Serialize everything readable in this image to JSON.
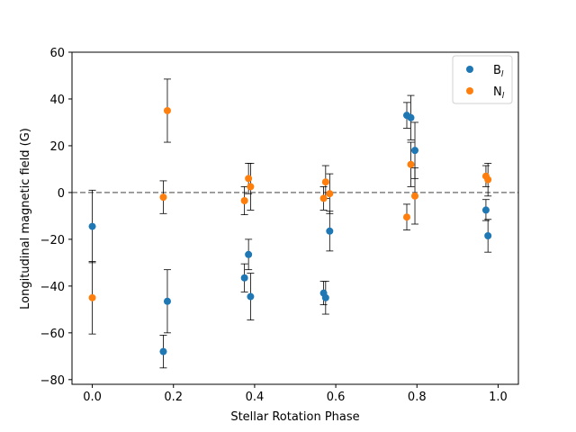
{
  "chart_data": {
    "type": "scatter",
    "title": "",
    "xlabel": "Stellar Rotation Phase",
    "ylabel": "Longitudinal magnetic field (G)",
    "xlim": [
      -0.05,
      1.05
    ],
    "ylim": [
      -82,
      60
    ],
    "xticks": [
      0.0,
      0.2,
      0.4,
      0.6,
      0.8,
      1.0
    ],
    "xtick_labels": [
      "0.0",
      "0.2",
      "0.4",
      "0.6",
      "0.8",
      "1.0"
    ],
    "yticks": [
      -80,
      -60,
      -40,
      -20,
      0,
      20,
      40,
      60
    ],
    "ytick_labels": [
      "−80",
      "−60",
      "−40",
      "−20",
      "0",
      "20",
      "40",
      "60"
    ],
    "reference_line": {
      "y": 0,
      "style": "dashed",
      "color": "#808080"
    },
    "legend": {
      "position": "top-right"
    },
    "series": [
      {
        "name": "B",
        "subscript": "l",
        "color": "#1f77b4",
        "points": [
          {
            "x": 0.0,
            "y": -14.5,
            "err": 15.5
          },
          {
            "x": 0.175,
            "y": -68.0,
            "err": 7.0
          },
          {
            "x": 0.185,
            "y": -46.5,
            "err": 13.5
          },
          {
            "x": 0.375,
            "y": -36.5,
            "err": 6.0
          },
          {
            "x": 0.385,
            "y": -26.5,
            "err": 6.5
          },
          {
            "x": 0.39,
            "y": -44.5,
            "err": 10.0
          },
          {
            "x": 0.57,
            "y": -43.0,
            "err": 5.0
          },
          {
            "x": 0.575,
            "y": -45.0,
            "err": 7.0
          },
          {
            "x": 0.585,
            "y": -16.5,
            "err": 8.5
          },
          {
            "x": 0.775,
            "y": 33.0,
            "err": 5.5
          },
          {
            "x": 0.785,
            "y": 32.0,
            "err": 9.5
          },
          {
            "x": 0.795,
            "y": 18.0,
            "err": 12.0
          },
          {
            "x": 0.97,
            "y": -7.5,
            "err": 4.5
          },
          {
            "x": 0.975,
            "y": -18.5,
            "err": 7.0
          }
        ]
      },
      {
        "name": "N",
        "subscript": "l",
        "color": "#ff7f0e",
        "points": [
          {
            "x": 0.0,
            "y": -45.0,
            "err": 15.5
          },
          {
            "x": 0.175,
            "y": -2.0,
            "err": 7.0
          },
          {
            "x": 0.185,
            "y": 35.0,
            "err": 13.5
          },
          {
            "x": 0.375,
            "y": -3.5,
            "err": 6.0
          },
          {
            "x": 0.385,
            "y": 6.0,
            "err": 6.5
          },
          {
            "x": 0.39,
            "y": 2.5,
            "err": 10.0
          },
          {
            "x": 0.57,
            "y": -2.5,
            "err": 5.0
          },
          {
            "x": 0.575,
            "y": 4.5,
            "err": 7.0
          },
          {
            "x": 0.585,
            "y": -0.5,
            "err": 8.5
          },
          {
            "x": 0.775,
            "y": -10.5,
            "err": 5.5
          },
          {
            "x": 0.785,
            "y": 12.0,
            "err": 9.5
          },
          {
            "x": 0.795,
            "y": -1.5,
            "err": 12.0
          },
          {
            "x": 0.97,
            "y": 7.0,
            "err": 4.5
          },
          {
            "x": 0.975,
            "y": 5.5,
            "err": 7.0
          }
        ]
      }
    ]
  }
}
